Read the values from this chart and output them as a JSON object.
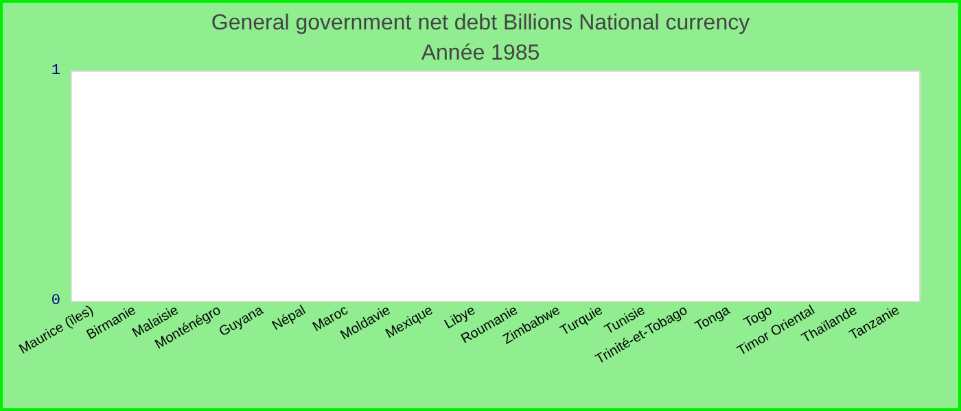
{
  "chart_data": {
    "type": "bar",
    "title": "General government net debt Billions National currency",
    "subtitle": "Année 1985",
    "categories": [
      "Maurice (îles)",
      "Birmanie",
      "Malaisie",
      "Monténégro",
      "Guyana",
      "Népal",
      "Maroc",
      "Moldavie",
      "Mexique",
      "Libye",
      "Roumanie",
      "Zimbabwe",
      "Turquie",
      "Tunisie",
      "Trinité-et-Tobago",
      "Tonga",
      "Togo",
      "Timor Oriental",
      "Thaïlande",
      "Tanzanie"
    ],
    "values": [
      null,
      null,
      null,
      null,
      null,
      null,
      null,
      null,
      null,
      null,
      null,
      null,
      null,
      null,
      null,
      null,
      null,
      null,
      null,
      null
    ],
    "ylim": [
      0,
      1
    ],
    "yticks": [
      0,
      1
    ],
    "grid": false
  }
}
